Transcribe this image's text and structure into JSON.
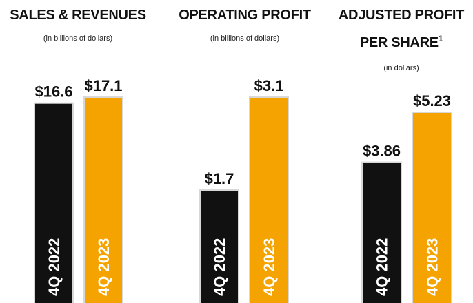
{
  "chart_data": [
    {
      "type": "bar",
      "title": "SALES & REVENUES",
      "subtitle": "(in billions of dollars)",
      "categories": [
        "4Q 2022",
        "4Q 2023"
      ],
      "values": [
        16.6,
        17.1
      ],
      "value_labels": [
        "$16.6",
        "$17.1"
      ],
      "colors": [
        "#111111",
        "#f5a300"
      ]
    },
    {
      "type": "bar",
      "title": "OPERATING PROFIT",
      "subtitle": "(in billions of dollars)",
      "categories": [
        "4Q 2022",
        "4Q 2023"
      ],
      "values": [
        1.7,
        3.1
      ],
      "value_labels": [
        "$1.7",
        "$3.1"
      ],
      "colors": [
        "#111111",
        "#f5a300"
      ]
    },
    {
      "type": "bar",
      "title": "ADJUSTED PROFIT PER SHARE",
      "title_footnote": "1",
      "subtitle": "(in dollars)",
      "categories": [
        "4Q 2022",
        "4Q 2023"
      ],
      "values": [
        3.86,
        5.23
      ],
      "value_labels": [
        "$3.86",
        "$5.23"
      ],
      "colors": [
        "#111111",
        "#f5a300"
      ]
    }
  ]
}
